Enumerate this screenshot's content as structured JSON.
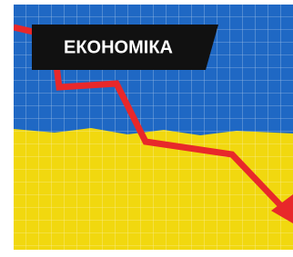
{
  "label": "ЕКОНОМІКА"
}
